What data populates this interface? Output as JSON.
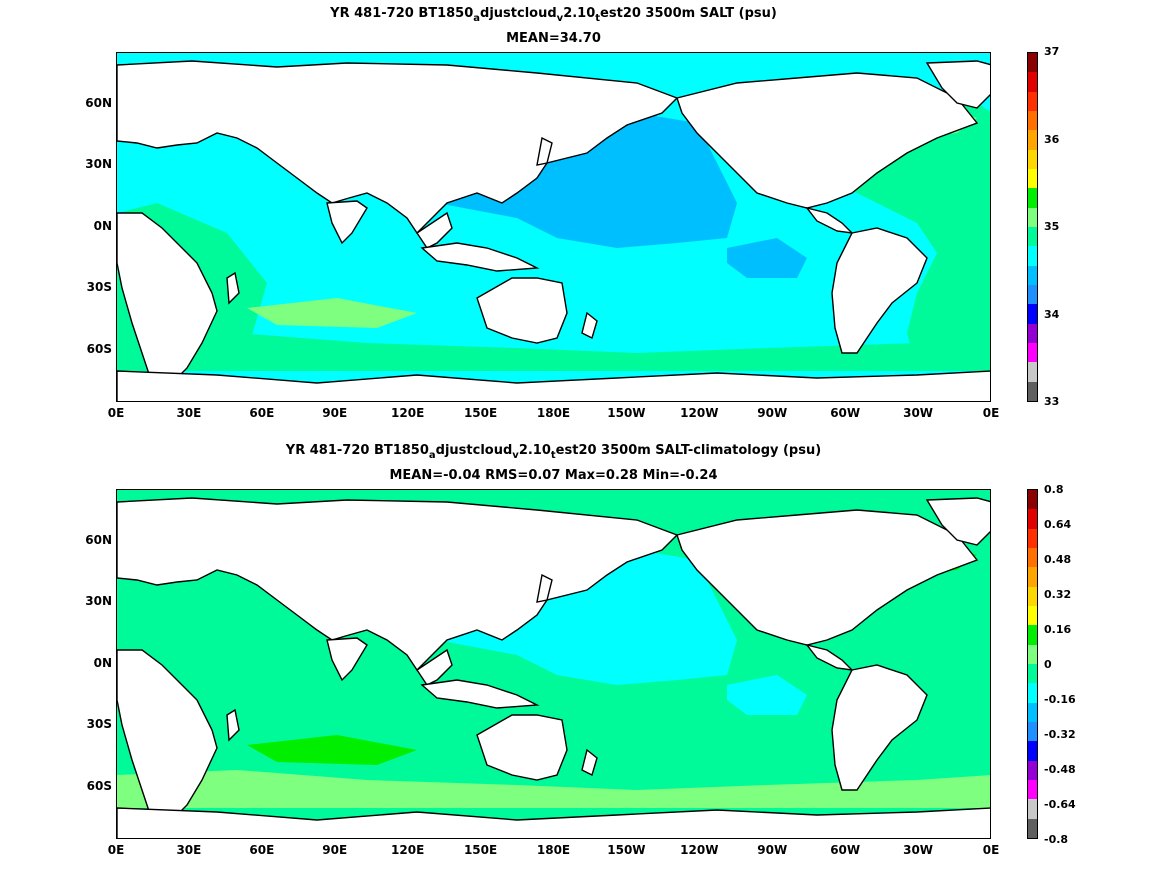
{
  "panels": [
    {
      "title": {
        "part1": "YR 481-720 BT1850",
        "sub1": "a",
        "part2": "djustcloud",
        "sub2": "v",
        "part3": "2.10",
        "sub3": "t",
        "part4": "est20 3500m SALT (psu)"
      },
      "stats": "MEAN=34.70",
      "colorbar_labels": [
        "37",
        "36",
        "35",
        "34",
        "33"
      ],
      "colors": {
        "ocean_main": "#00ffff",
        "pacific_north": "#00bfff",
        "atlantic": "#00fa9a",
        "indian_west": "#00fa9a",
        "southern_band": "#00fa9a",
        "accent_light": "#7fff7f"
      }
    },
    {
      "title": {
        "part1": "YR 481-720 BT1850",
        "sub1": "a",
        "part2": "djustcloud",
        "sub2": "v",
        "part3": "2.10",
        "sub3": "t",
        "part4": "est20 3500m SALT-climatology (psu)"
      },
      "stats": "MEAN=-0.04   RMS=0.07   Max=0.28   Min=-0.24",
      "colorbar_labels": [
        "0.8",
        "0.64",
        "0.48",
        "0.32",
        "0.16",
        "0",
        "-0.16",
        "-0.32",
        "-0.48",
        "-0.64",
        "-0.8"
      ],
      "colors": {
        "ocean_main": "#00fa9a",
        "pacific_north": "#00ffff",
        "atlantic": "#00fa9a",
        "indian_west": "#00fa9a",
        "southern_band": "#7fff7f",
        "accent_light": "#00ee00"
      }
    }
  ],
  "axes": {
    "x_ticks": [
      "0E",
      "30E",
      "60E",
      "90E",
      "120E",
      "150E",
      "180E",
      "150W",
      "120W",
      "90W",
      "60W",
      "30W",
      "0E"
    ],
    "y_ticks": [
      "60N",
      "30N",
      "0N",
      "30S",
      "60S"
    ]
  },
  "colorbar_colors": [
    "#8b0000",
    "#e00000",
    "#ff3000",
    "#ff7000",
    "#ffa500",
    "#ffd700",
    "#ffff00",
    "#00ee00",
    "#7fff7f",
    "#00fa9a",
    "#00ffff",
    "#00bfff",
    "#1e90ff",
    "#0000ff",
    "#9400d3",
    "#ff00ff",
    "#c8c8c8",
    "#606060"
  ]
}
